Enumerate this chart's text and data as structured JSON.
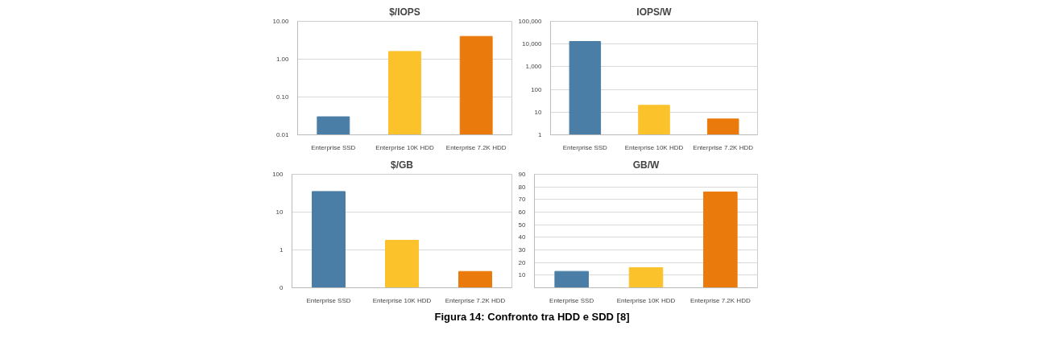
{
  "chart_data": [
    {
      "type": "bar",
      "title": "$/IOPS",
      "categories": [
        "Enterprise SSD",
        "Enterprise 10K HDD",
        "Enterprise 7.2K HDD"
      ],
      "colors": [
        "#4a7ea6",
        "#fbc22c",
        "#ea7a0c"
      ],
      "values": [
        0.03,
        1.6,
        4
      ],
      "log": true,
      "ylim": [
        0.01,
        10
      ],
      "yticks": [
        {
          "value": 0.01,
          "label": "0.01"
        },
        {
          "value": 0.1,
          "label": "0.10"
        },
        {
          "value": 1,
          "label": "1.00"
        },
        {
          "value": 10,
          "label": "10.00"
        }
      ],
      "grid": "y"
    },
    {
      "type": "bar",
      "title": "IOPS/W",
      "categories": [
        "Enterprise SSD",
        "Enterprise 10K HDD",
        "Enterprise 7.2K HDD"
      ],
      "colors": [
        "#4a7ea6",
        "#fbc22c",
        "#ea7a0c"
      ],
      "values": [
        13000,
        20,
        5
      ],
      "log": true,
      "ylim": [
        1,
        100000
      ],
      "yticks": [
        1,
        10,
        100,
        {
          "value": 1000,
          "label": "1,000"
        },
        {
          "value": 10000,
          "label": "10,000"
        },
        {
          "value": 100000,
          "label": "100,000"
        }
      ],
      "grid": "y"
    },
    {
      "type": "bar",
      "title": "$/GB",
      "categories": [
        "Enterprise SSD",
        "Enterprise 10K HDD",
        "Enterprise 7.2K HDD"
      ],
      "colors": [
        "#4a7ea6",
        "#fbc22c",
        "#ea7a0c"
      ],
      "values": [
        35,
        1.8,
        0.27
      ],
      "log": true,
      "ylim": [
        0.1,
        100
      ],
      "yticks": [
        {
          "value": 0.1,
          "label": "0"
        },
        1,
        10,
        100
      ],
      "grid": "y"
    },
    {
      "type": "bar",
      "title": "GB/W",
      "categories": [
        "Enterprise SSD",
        "Enterprise 10K HDD",
        "Enterprise 7.2K HDD"
      ],
      "colors": [
        "#4a7ea6",
        "#fbc22c",
        "#ea7a0c"
      ],
      "values": [
        13,
        16,
        76
      ],
      "ylim": [
        0,
        90
      ],
      "yticks": [
        {
          "value": 0,
          "label": null
        },
        10,
        20,
        30,
        40,
        50,
        60,
        70,
        80,
        90
      ],
      "grid": "y",
      "annotations": [
        "Figura 14: Confronto tra HDD e SDD [8]"
      ]
    }
  ]
}
